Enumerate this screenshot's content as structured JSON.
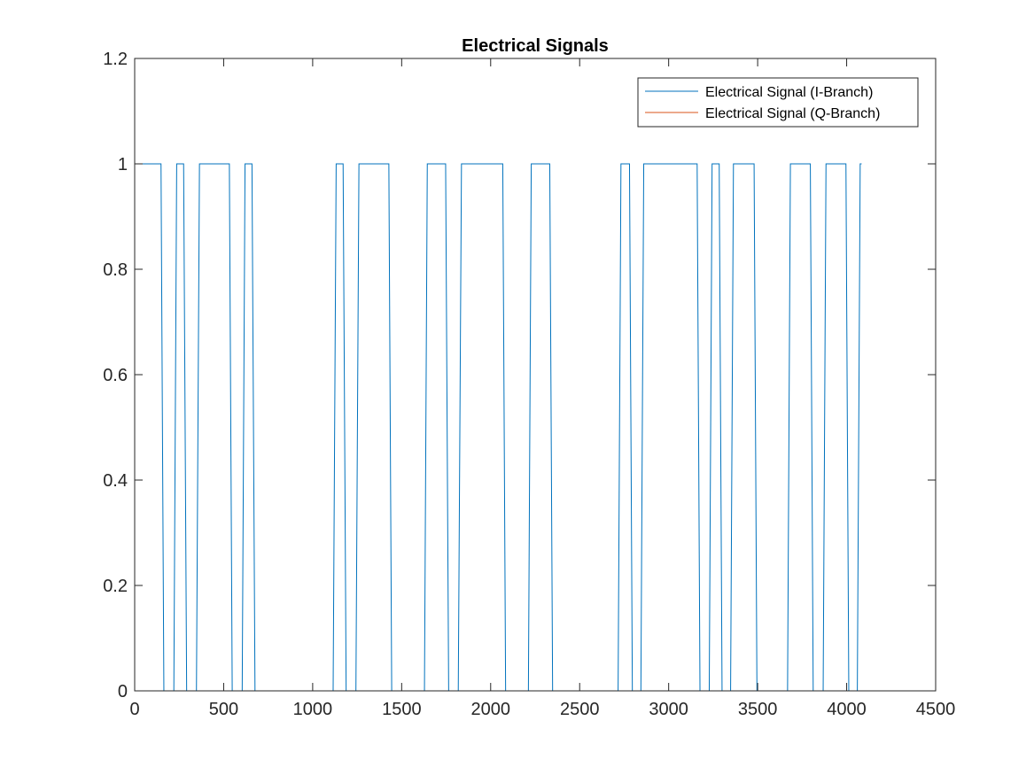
{
  "chart_data": {
    "type": "line",
    "title": "Electrical Signals",
    "xlabel": "",
    "ylabel": "",
    "xlim": [
      0,
      4500
    ],
    "ylim": [
      0,
      1.2
    ],
    "xticks": [
      0,
      500,
      1000,
      1500,
      2000,
      2500,
      3000,
      3500,
      4000,
      4500
    ],
    "xtick_labels": [
      "0",
      "500",
      "1000",
      "1500",
      "2000",
      "2500",
      "3000",
      "3500",
      "4000",
      "4500"
    ],
    "yticks": [
      0,
      0.2,
      0.4,
      0.6,
      0.8,
      1,
      1.2
    ],
    "ytick_labels": [
      "0",
      "0.2",
      "0.4",
      "0.6",
      "0.8",
      "1",
      "1.2"
    ],
    "grid": false,
    "legend_position": "top-right",
    "series": [
      {
        "name": "Electrical Signal (I-Branch)",
        "color": "#0072BD",
        "x": [
          0,
          148,
          164,
          220,
          236,
          275,
          292,
          347,
          364,
          532,
          548,
          604,
          620,
          659,
          676,
          1115,
          1132,
          1171,
          1188,
          1243,
          1260,
          1428,
          1444,
          1628,
          1644,
          1747,
          1764,
          1818,
          1836,
          2068,
          2084,
          2212,
          2228,
          2332,
          2348,
          2716,
          2732,
          2780,
          2796,
          2844,
          2860,
          3160,
          3176,
          3228,
          3244,
          3284,
          3300,
          3348,
          3364,
          3480,
          3496,
          3668,
          3684,
          3796,
          3812,
          3868,
          3884,
          3996,
          4012,
          4060,
          4076,
          4084
        ],
        "y": [
          1,
          1,
          0,
          0,
          1,
          1,
          0,
          0,
          1,
          1,
          0,
          0,
          1,
          1,
          0,
          0,
          1,
          1,
          0,
          0,
          1,
          1,
          0,
          0,
          1,
          1,
          0,
          0,
          1,
          1,
          0,
          0,
          1,
          1,
          0,
          0,
          1,
          1,
          0,
          0,
          1,
          1,
          0,
          0,
          1,
          1,
          0,
          0,
          1,
          1,
          0,
          0,
          1,
          1,
          0,
          0,
          1,
          1,
          0,
          0,
          1,
          1
        ]
      },
      {
        "name": "Electrical Signal (Q-Branch)",
        "color": "#D95319",
        "x": [
          0,
          4096
        ],
        "y": [
          0,
          0
        ]
      }
    ]
  }
}
